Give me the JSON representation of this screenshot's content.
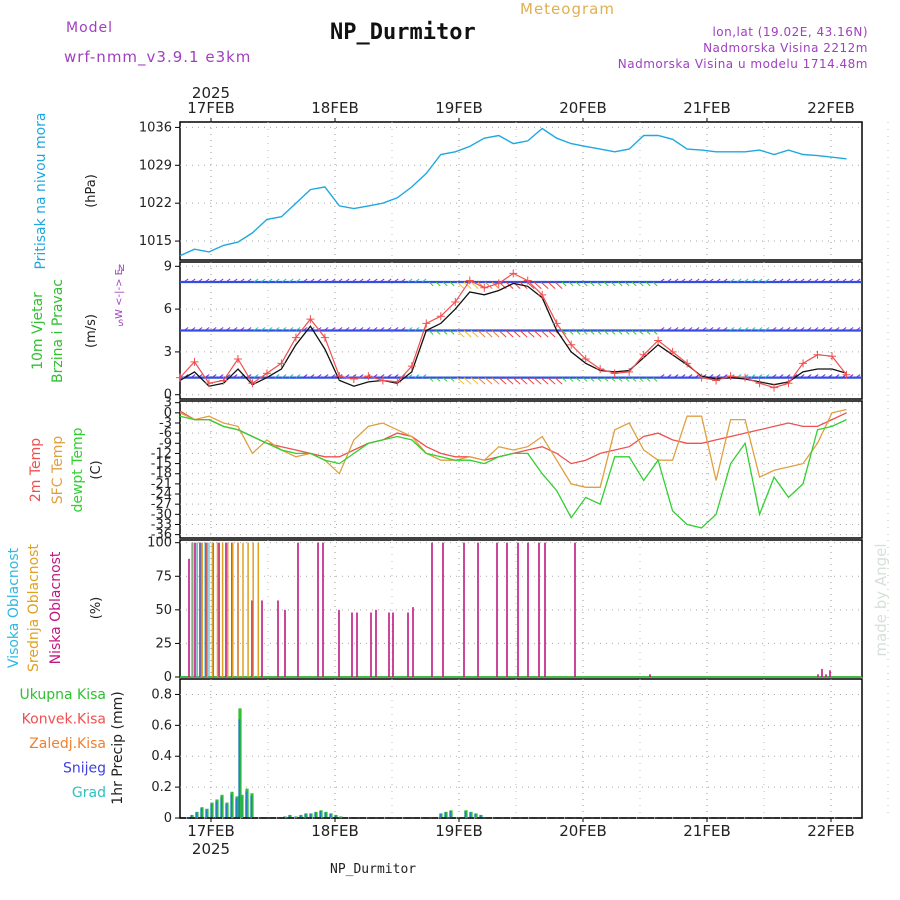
{
  "header": {
    "title": "NP_Durmitor",
    "meteogram_label": "Meteogram",
    "model_label": "Model",
    "model_value": "wrf-nmm_v3.9.1  e3km",
    "location_line1": "lon,lat (19.02E, 43.16N)",
    "location_line2": "Nadmorska Visina 2212m",
    "location_line3": "Nadmorska Visina u modelu 1714.48m",
    "footer": "NP_Durmitor",
    "credit": "made by Angel",
    "year": "2025"
  },
  "colors": {
    "pressure": "#1fa8e0",
    "wind_speed": "#f05050",
    "wind_gust": "#111111",
    "temp2m": "#f05050",
    "sfc_temp": "#e0a040",
    "dewpt": "#30d030",
    "high_cloud": "#30b8e0",
    "mid_cloud": "#e0a020",
    "low_cloud": "#c01880",
    "precip_total": "#30c030",
    "precip_conv": "#f05050",
    "precip_frozen": "#f08030",
    "precip_snow": "#4040e0",
    "precip_graupel": "#30c0c0",
    "label_purple": "#a040c0"
  },
  "chart_data": [
    {
      "type": "line",
      "panel": "pressure",
      "ylabel_rotated": "Pritisak na nivou mora",
      "unit": "(hPa)",
      "yticks": [
        "1036",
        "1029",
        "1022",
        "1015"
      ],
      "ylim": [
        1011.5,
        1037
      ],
      "x": [
        "16FEB 18",
        "16FEB 21",
        "17FEB 00",
        "17FEB 03",
        "17FEB 06",
        "17FEB 09",
        "17FEB 12",
        "17FEB 15",
        "17FEB 18",
        "17FEB 21",
        "18FEB 00",
        "18FEB 03",
        "18FEB 06",
        "18FEB 09",
        "18FEB 12",
        "18FEB 15",
        "18FEB 18",
        "18FEB 21",
        "19FEB 00",
        "19FEB 03",
        "19FEB 06",
        "19FEB 09",
        "19FEB 12",
        "19FEB 15",
        "19FEB 18",
        "19FEB 21",
        "20FEB 00",
        "20FEB 03",
        "20FEB 06",
        "20FEB 09",
        "20FEB 12",
        "20FEB 15",
        "20FEB 18",
        "20FEB 21",
        "21FEB 00",
        "21FEB 03",
        "21FEB 06",
        "21FEB 09",
        "21FEB 12",
        "21FEB 15",
        "21FEB 18",
        "21FEB 21",
        "22FEB 00",
        "22FEB 03",
        "22FEB 06",
        "22FEB 09",
        "22FEB 12"
      ],
      "values": [
        1012.3,
        1013.5,
        1013.0,
        1014.2,
        1014.8,
        1016.5,
        1019.0,
        1019.5,
        1022.0,
        1024.5,
        1025.0,
        1021.5,
        1021.0,
        1021.5,
        1022.0,
        1023.0,
        1025.0,
        1027.5,
        1031.0,
        1031.5,
        1032.5,
        1034.0,
        1034.5,
        1033.0,
        1033.5,
        1035.8,
        1034.0,
        1033.0,
        1032.5,
        1032.0,
        1031.5,
        1032.0,
        1034.5,
        1034.5,
        1033.8,
        1032.0,
        1031.8,
        1031.5,
        1031.5,
        1031.5,
        1031.8,
        1031.0,
        1031.8,
        1031.0,
        1030.8,
        1030.5,
        1030.2
      ]
    },
    {
      "type": "line",
      "panel": "wind",
      "ylabel_rotated_1": "10m Vjetar",
      "ylabel_rotated_2": "Brzina i Pravac",
      "unit": "(m/s)",
      "compass": "W  <-|->  E",
      "compass_n": "N",
      "compass_s": "S",
      "yticks": [
        "9",
        "6",
        "3",
        "0"
      ],
      "ylim": [
        -0.3,
        9.3
      ],
      "series": [
        {
          "name": "Wind speed",
          "values": [
            1.2,
            2.3,
            0.8,
            1.0,
            2.5,
            0.8,
            1.5,
            2.2,
            4.0,
            5.3,
            4.0,
            1.3,
            1.1,
            1.3,
            1.0,
            0.9,
            2.0,
            5.0,
            5.5,
            6.5,
            8.0,
            7.5,
            7.8,
            8.5,
            8.0,
            7.0,
            5.0,
            3.5,
            2.5,
            1.8,
            1.5,
            1.6,
            2.8,
            3.8,
            3.0,
            2.2,
            1.2,
            1.0,
            1.3,
            1.2,
            0.8,
            0.5,
            0.8,
            2.2,
            2.8,
            2.7,
            1.4
          ]
        },
        {
          "name": "Wind gust",
          "values": [
            1.0,
            1.6,
            0.6,
            0.8,
            1.8,
            0.7,
            1.2,
            1.8,
            3.5,
            4.8,
            3.2,
            1.0,
            0.6,
            0.9,
            1.0,
            0.8,
            1.6,
            4.5,
            5.0,
            6.0,
            7.2,
            7.0,
            7.3,
            7.8,
            7.6,
            6.8,
            4.5,
            3.0,
            2.2,
            1.7,
            1.6,
            1.7,
            2.6,
            3.5,
            2.8,
            2.1,
            1.3,
            1.1,
            1.2,
            1.1,
            0.9,
            0.7,
            0.9,
            1.6,
            1.8,
            1.8,
            1.5
          ]
        }
      ]
    },
    {
      "type": "line",
      "panel": "temperature",
      "ylabel_rotated_1": "2m Temp",
      "ylabel_rotated_2": "SFC Temp",
      "ylabel_rotated_3": "dewpt Temp",
      "unit": "(C)",
      "yticks": [
        "3",
        "0",
        "-3",
        "-6",
        "-9",
        "-12",
        "-15",
        "-18",
        "-21",
        "-24",
        "-27",
        "-30",
        "-33",
        "-36"
      ],
      "ylim": [
        -37,
        3.5
      ],
      "series": [
        {
          "name": "2m Temp",
          "values": [
            0.5,
            -2,
            -2,
            -4,
            -5,
            -7,
            -9,
            -10,
            -11,
            -12,
            -13,
            -13,
            -11,
            -9,
            -8,
            -6,
            -7,
            -10,
            -12,
            -13,
            -13,
            -14,
            -13,
            -12,
            -11,
            -10,
            -12,
            -15,
            -14,
            -12,
            -11,
            -10,
            -7,
            -6,
            -8,
            -9,
            -9,
            -8,
            -7,
            -6,
            -5,
            -4,
            -3,
            -4,
            -4,
            -2,
            0
          ]
        },
        {
          "name": "SFC Temp",
          "values": [
            0,
            -2,
            -1,
            -3,
            -4,
            -12,
            -8,
            -11,
            -13,
            -12,
            -14,
            -18,
            -8,
            -4,
            -3,
            -5,
            -7,
            -12,
            -14,
            -14,
            -13,
            -14,
            -10,
            -11,
            -10,
            -7,
            -14,
            -21,
            -22,
            -22,
            -5,
            -3,
            -11,
            -14,
            -14,
            -1,
            -1,
            -20,
            -2,
            -2,
            -19,
            -17,
            -16,
            -15,
            -9,
            0,
            1
          ]
        },
        {
          "name": "dewpt Temp",
          "values": [
            -1,
            -2,
            -2,
            -4,
            -5,
            -7,
            -9,
            -11,
            -12,
            -12,
            -14,
            -15,
            -12,
            -9,
            -8,
            -7,
            -8,
            -12,
            -13,
            -14,
            -14,
            -15,
            -13,
            -12,
            -12,
            -18,
            -23,
            -31,
            -25,
            -27,
            -13,
            -13,
            -20,
            -14,
            -29,
            -33,
            -34,
            -30,
            -15,
            -9,
            -30,
            -19,
            -25,
            -21,
            -5,
            -4,
            -2
          ]
        }
      ]
    },
    {
      "type": "bar",
      "panel": "clouds",
      "ylabel_rotated_1": "Visoka Oblacnost",
      "ylabel_rotated_2": "Srednja Oblacnost",
      "ylabel_rotated_3": "Niska Oblacnost",
      "unit": "(%)",
      "yticks": [
        "100",
        "75",
        "50",
        "25",
        "0"
      ],
      "ylim": [
        0,
        100
      ],
      "series": [
        {
          "name": "Niska Oblacnost",
          "values": [
            88,
            100,
            100,
            100,
            100,
            100,
            100,
            100,
            100,
            57,
            57,
            57,
            50,
            100,
            100,
            100,
            50,
            48,
            48,
            48,
            50,
            48,
            48,
            48,
            52,
            100,
            100,
            100,
            100,
            100,
            100,
            100,
            100,
            100,
            100,
            100,
            2,
            2,
            6,
            2,
            5
          ]
        },
        {
          "name": "Srednja Oblacnost",
          "values": [
            100,
            100,
            100,
            100,
            100,
            100,
            100,
            100,
            100,
            100,
            100,
            100,
            100,
            100
          ]
        },
        {
          "name": "Visoka Oblacnost",
          "values": [
            100,
            100,
            100,
            100,
            100
          ]
        }
      ]
    },
    {
      "type": "bar",
      "panel": "precipitation",
      "ylabel_rotated": "1hr Precip (mm)",
      "legend": [
        "Ukupna Kisa",
        "Konvek.Kisa",
        "Zaledj.Kisa",
        "Snijeg",
        "Grad"
      ],
      "yticks": [
        "0.8",
        "0.6",
        "0.4",
        "0.2",
        "0"
      ],
      "ylim": [
        0,
        0.9
      ],
      "values": [
        0.02,
        0.04,
        0.07,
        0.06,
        0.1,
        0.12,
        0.15,
        0.1,
        0.17,
        0.14,
        0.15,
        0.12,
        0.71,
        0.19,
        0.16,
        0.01,
        0.02,
        0.01,
        0.02,
        0.03,
        0.03,
        0.04,
        0.05,
        0.04,
        0.03,
        0.02,
        0.01,
        0.03,
        0.04,
        0.05,
        0.05,
        0.04,
        0.03,
        0.02
      ]
    }
  ],
  "xaxis": {
    "days": [
      "17FEB",
      "18FEB",
      "19FEB",
      "20FEB",
      "21FEB",
      "22FEB"
    ]
  }
}
